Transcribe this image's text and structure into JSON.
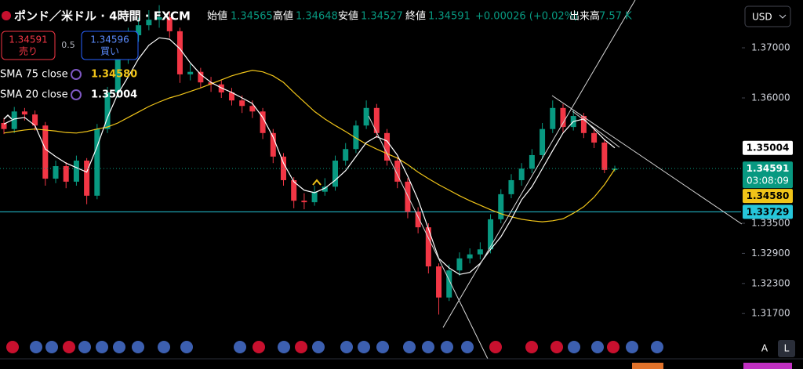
{
  "chart_data": {
    "type": "candlestick",
    "title": "ポンド／米ドル · 4時間 · FXCM",
    "ohlc_labels": {
      "open": "始値",
      "high": "高値",
      "low": "安値",
      "close": "終値",
      "volume": "出来高"
    },
    "change": "+0.00026 (+0.02%)",
    "volume": "7.57 K",
    "trade": {
      "sell_price": "1.34591",
      "sell_label": "売り",
      "spread": "0.5",
      "buy_price": "1.34596",
      "buy_label": "買い"
    },
    "currency": "USD",
    "countdown": "03:08:09",
    "scale_buttons": [
      "A",
      "L"
    ],
    "up_color": "#089981",
    "down_color": "#f23645",
    "ohlc": {
      "open": [
        1.355,
        1.3538,
        1.3573,
        1.3567,
        1.3545,
        1.3439,
        1.3464,
        1.3433,
        1.3475,
        1.3405,
        1.3538,
        1.3611,
        1.3678,
        1.3725,
        1.3745,
        1.3756,
        1.3761,
        1.3733,
        1.3647,
        1.3652,
        1.3631,
        1.3627,
        1.3611,
        1.3595,
        1.3584,
        1.3573,
        1.353,
        1.3483,
        1.3436,
        1.3395,
        1.3392,
        1.3413,
        1.3423,
        1.3475,
        1.3498,
        1.3545,
        1.358,
        1.353,
        1.3475,
        1.3433,
        1.3373,
        1.3342,
        1.3264,
        1.3202,
        1.3256,
        1.328,
        1.3288,
        1.3298,
        1.3358,
        1.3408,
        1.3436,
        1.3459,
        1.3486,
        1.3538,
        1.358,
        1.3542,
        1.3564,
        1.353,
        1.3511,
        1.34565
      ],
      "high": [
        1.356,
        1.3582,
        1.358,
        1.3575,
        1.3552,
        1.3475,
        1.3472,
        1.3485,
        1.348,
        1.3548,
        1.3622,
        1.369,
        1.374,
        1.376,
        1.3775,
        1.3785,
        1.3772,
        1.374,
        1.3668,
        1.366,
        1.3642,
        1.3635,
        1.362,
        1.3605,
        1.3595,
        1.358,
        1.3538,
        1.349,
        1.3442,
        1.341,
        1.3425,
        1.344,
        1.3485,
        1.351,
        1.3555,
        1.3595,
        1.3588,
        1.3538,
        1.3482,
        1.344,
        1.3382,
        1.335,
        1.327,
        1.3268,
        1.3292,
        1.33,
        1.3312,
        1.3368,
        1.3418,
        1.3448,
        1.347,
        1.3498,
        1.355,
        1.3595,
        1.3588,
        1.3575,
        1.357,
        1.3538,
        1.3518,
        1.34648
      ],
      "low": [
        1.3528,
        1.353,
        1.3555,
        1.3535,
        1.3425,
        1.343,
        1.342,
        1.3425,
        1.3388,
        1.3398,
        1.353,
        1.36,
        1.3668,
        1.3712,
        1.3735,
        1.374,
        1.372,
        1.363,
        1.3635,
        1.362,
        1.3612,
        1.36,
        1.3585,
        1.357,
        1.356,
        1.3518,
        1.347,
        1.3425,
        1.338,
        1.3378,
        1.3385,
        1.3405,
        1.3415,
        1.3465,
        1.349,
        1.3538,
        1.352,
        1.3465,
        1.342,
        1.336,
        1.333,
        1.325,
        1.3168,
        1.3195,
        1.3245,
        1.327,
        1.3278,
        1.329,
        1.335,
        1.34,
        1.3425,
        1.345,
        1.3478,
        1.353,
        1.3532,
        1.3535,
        1.352,
        1.35,
        1.345,
        1.34527
      ],
      "close": [
        1.3538,
        1.3573,
        1.3567,
        1.3545,
        1.3439,
        1.3464,
        1.3433,
        1.3475,
        1.3405,
        1.3538,
        1.3611,
        1.3678,
        1.3725,
        1.3745,
        1.3756,
        1.3761,
        1.3733,
        1.3647,
        1.3652,
        1.3631,
        1.3627,
        1.3611,
        1.3595,
        1.3584,
        1.3573,
        1.353,
        1.3483,
        1.3436,
        1.3395,
        1.3392,
        1.3413,
        1.3423,
        1.3475,
        1.3498,
        1.3545,
        1.358,
        1.353,
        1.3475,
        1.3433,
        1.3373,
        1.3342,
        1.3264,
        1.3202,
        1.3256,
        1.328,
        1.3288,
        1.3298,
        1.3358,
        1.3408,
        1.3436,
        1.3459,
        1.3486,
        1.3538,
        1.358,
        1.3542,
        1.3564,
        1.353,
        1.3511,
        1.34565,
        1.34591
      ]
    },
    "series": [
      {
        "name": "SMA 75 close",
        "color": "#f0c419",
        "values": [
          1.353,
          1.3533,
          1.3536,
          1.3538,
          1.3536,
          1.3534,
          1.3531,
          1.353,
          1.3533,
          1.3538,
          1.3542,
          1.355,
          1.3561,
          1.3572,
          1.3583,
          1.3592,
          1.36,
          1.3606,
          1.3613,
          1.362,
          1.3628,
          1.3636,
          1.3644,
          1.365,
          1.3655,
          1.3652,
          1.3644,
          1.3631,
          1.3611,
          1.3592,
          1.3573,
          1.3558,
          1.3545,
          1.3533,
          1.352,
          1.3508,
          1.3498,
          1.3489,
          1.348,
          1.3467,
          1.3452,
          1.3439,
          1.3427,
          1.3416,
          1.3405,
          1.3395,
          1.3386,
          1.3377,
          1.3369,
          1.3363,
          1.3358,
          1.3355,
          1.3353,
          1.3355,
          1.3359,
          1.337,
          1.3383,
          1.3402,
          1.3427,
          1.3458
        ],
        "value_labels": [
          null,
          null,
          null,
          null,
          null,
          null,
          null,
          null,
          null,
          null,
          null,
          null,
          null,
          null,
          null,
          null,
          null,
          null,
          null,
          null,
          null,
          null,
          null,
          null,
          null,
          null,
          null,
          null,
          null,
          null,
          null,
          null,
          null,
          null,
          null,
          null,
          null,
          null,
          null,
          null,
          null,
          null,
          null,
          null,
          null,
          null,
          null,
          null,
          null,
          null,
          null,
          null,
          null,
          null,
          null,
          null,
          null,
          null,
          null,
          "1.34580"
        ]
      },
      {
        "name": "SMA 20 close",
        "color": "#ffffff",
        "values": [
          1.3548,
          1.3558,
          1.3561,
          1.3545,
          1.3498,
          1.3483,
          1.347,
          1.3461,
          1.3452,
          1.3503,
          1.3561,
          1.3608,
          1.3642,
          1.3678,
          1.3705,
          1.372,
          1.3717,
          1.3698,
          1.367,
          1.3647,
          1.3631,
          1.362,
          1.3611,
          1.36,
          1.3589,
          1.3561,
          1.3522,
          1.347,
          1.3433,
          1.3416,
          1.3411,
          1.342,
          1.3436,
          1.3455,
          1.3483,
          1.3511,
          1.3523,
          1.3514,
          1.3486,
          1.3444,
          1.3397,
          1.3339,
          1.328,
          1.3261,
          1.3248,
          1.3252,
          1.327,
          1.3298,
          1.3323,
          1.3358,
          1.3397,
          1.3423,
          1.3459,
          1.3495,
          1.353,
          1.3553,
          1.3558,
          1.3538,
          1.3517,
          1.35004
        ]
      }
    ],
    "hline": {
      "value": 1.33729,
      "color": "#26c6da"
    },
    "ylim": [
      1.30844,
      1.37953
    ],
    "yticks": [
      {
        "value": 1.37,
        "label": "1.37000"
      },
      {
        "value": 1.36,
        "label": "1.36000"
      },
      {
        "value": 1.335,
        "label": "1.33500"
      },
      {
        "value": 1.329,
        "label": "1.32900"
      },
      {
        "value": 1.323,
        "label": "1.32300"
      },
      {
        "value": 1.317,
        "label": "1.31700"
      }
    ]
  }
}
